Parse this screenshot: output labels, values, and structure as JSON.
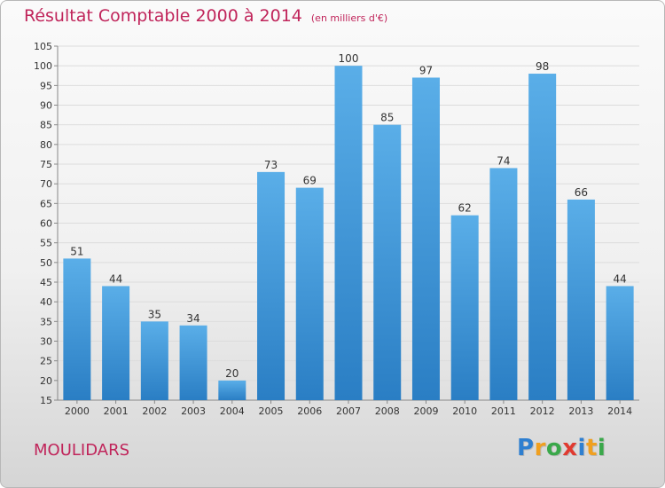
{
  "header": {
    "title": "Résultat Comptable 2000 à 2014",
    "subtitle": "(en milliers d'€)"
  },
  "footer": {
    "commune": "MOULIDARS",
    "logo_letters": [
      {
        "ch": "P",
        "color": "#2e7fd0"
      },
      {
        "ch": "r",
        "color": "#f0a020"
      },
      {
        "ch": "o",
        "color": "#3aa84a"
      },
      {
        "ch": "x",
        "color": "#e03a30"
      },
      {
        "ch": "i",
        "color": "#2e7fd0"
      },
      {
        "ch": "t",
        "color": "#f0a020"
      },
      {
        "ch": "i",
        "color": "#3aa84a"
      }
    ]
  },
  "colors": {
    "title": "#c0245a",
    "bar_top": "#5aaee8",
    "bar_bottom": "#2a7ec4"
  },
  "chart_data": {
    "type": "bar",
    "title": "Résultat Comptable 2000 à 2014",
    "categories": [
      "2000",
      "2001",
      "2002",
      "2003",
      "2004",
      "2005",
      "2006",
      "2007",
      "2008",
      "2009",
      "2010",
      "2011",
      "2012",
      "2013",
      "2014"
    ],
    "values": [
      51,
      44,
      35,
      34,
      20,
      73,
      69,
      100,
      85,
      97,
      62,
      74,
      98,
      66,
      44
    ],
    "ylim": [
      15,
      105
    ],
    "yticks": [
      15,
      20,
      25,
      30,
      35,
      40,
      45,
      50,
      55,
      60,
      65,
      70,
      75,
      80,
      85,
      90,
      95,
      100,
      105
    ],
    "grid": true,
    "data_labels": true
  }
}
